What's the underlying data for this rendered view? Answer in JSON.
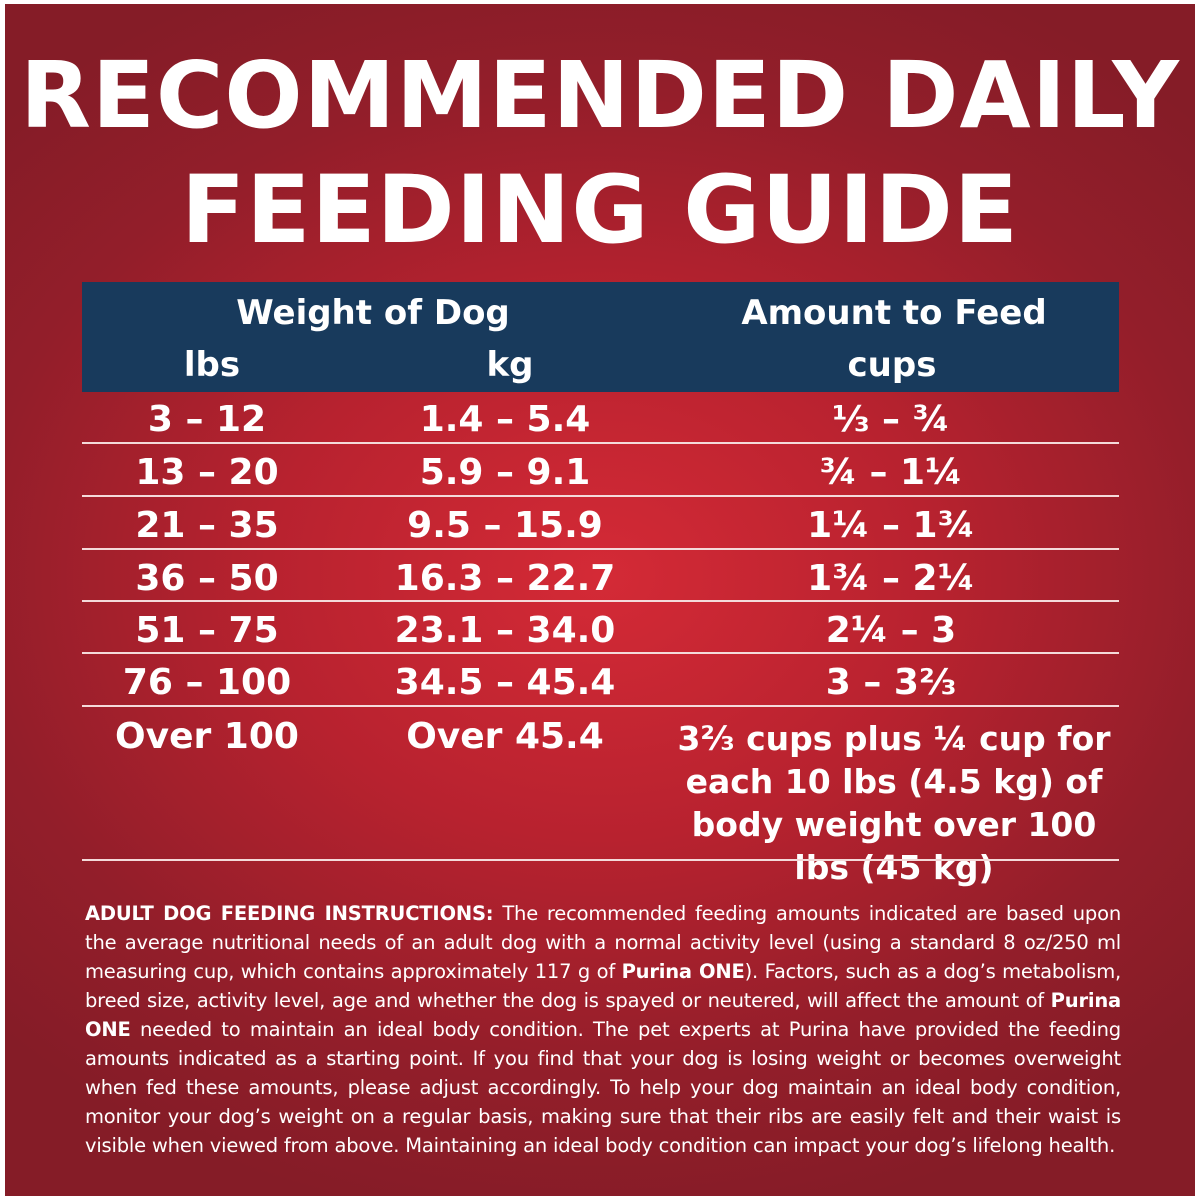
{
  "title": {
    "line1": "RECOMMENDED DAILY",
    "line2": "FEEDING GUIDE"
  },
  "table": {
    "header": {
      "weight_group": "Weight of Dog",
      "amount_group": "Amount to Feed",
      "lbs": "lbs",
      "kg": "kg",
      "cups": "cups"
    },
    "rows": [
      {
        "lbs": "3 – 12",
        "kg": "1.4 – 5.4",
        "cups": "⅓ – ¾"
      },
      {
        "lbs": "13 – 20",
        "kg": "5.9 – 9.1",
        "cups": "¾ – 1¼"
      },
      {
        "lbs": "21 – 35",
        "kg": "9.5 – 15.9",
        "cups": "1¼ – 1¾"
      },
      {
        "lbs": "36 – 50",
        "kg": "16.3 – 22.7",
        "cups": "1¾ – 2¼"
      },
      {
        "lbs": "51 – 75",
        "kg": "23.1 – 34.0",
        "cups": "2¼ – 3"
      },
      {
        "lbs": "76 – 100",
        "kg": "34.5 – 45.4",
        "cups": "3 – 3⅔"
      },
      {
        "lbs": "Over 100",
        "kg": "Over 45.4",
        "cups": "3⅔ cups plus ¼ cup for each 10 lbs (4.5 kg) of body weight over 100 lbs (45 kg)"
      }
    ]
  },
  "instructions": {
    "heading": "ADULT DOG FEEDING INSTRUCTIONS:",
    "part1": " The recommended feeding amounts indicated are based upon the average nutritional needs of an adult dog with a normal activity level (using a standard 8 oz/250 ml measuring cup, which contains approximately 117 g of ",
    "brand1": "Purina ONE",
    "part2": "). Factors, such as a dog’s metabolism, breed size, activity level, age and whether the dog is spayed or neutered, will affect the amount of ",
    "brand2": "Purina ONE",
    "part3": " needed to maintain an ideal body condition. The pet experts at Purina have provided the feeding amounts indicated as a starting point. If you find that your dog is losing weight or becomes overweight when fed these amounts, please adjust accordingly. To help your dog maintain an ideal body condition, monitor your dog’s weight on a regular basis, making sure that their ribs are easily felt and their waist is visible when viewed from above. Maintaining an ideal body condition can impact your dog’s lifelong health."
  },
  "colors": {
    "background": "#b8222f",
    "header_band": "#183a5c",
    "text": "#ffffff"
  }
}
